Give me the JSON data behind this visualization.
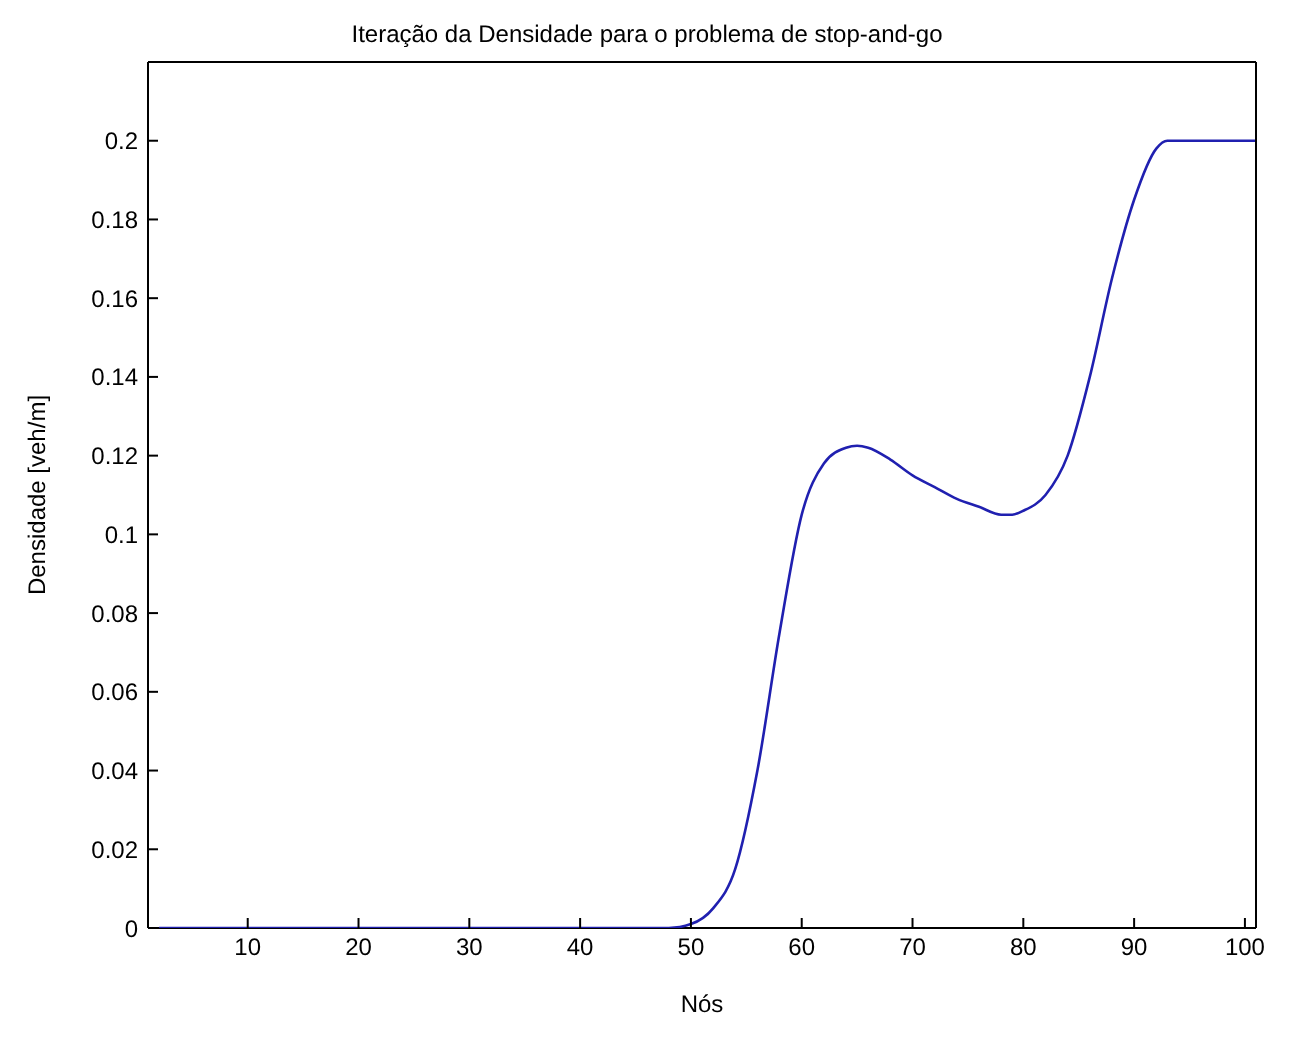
{
  "chart_data": {
    "type": "line",
    "title": "Iteração da Densidade para o problema de stop-and-go",
    "xlabel": "Nós",
    "ylabel": "Densidade [veh/m]",
    "x": [
      2,
      10,
      20,
      30,
      40,
      46,
      48,
      50,
      52,
      54,
      56,
      58,
      60,
      62,
      64,
      65,
      66,
      68,
      70,
      72,
      74,
      76,
      78,
      79,
      80,
      82,
      84,
      86,
      88,
      90,
      92,
      93,
      94,
      96,
      100,
      101
    ],
    "series": [
      {
        "color": "#2020b0",
        "values": [
          0,
          0,
          0,
          0,
          0,
          0,
          0,
          0.001,
          0.005,
          0.015,
          0.04,
          0.075,
          0.105,
          0.118,
          0.122,
          0.1225,
          0.122,
          0.119,
          0.115,
          0.112,
          0.109,
          0.107,
          0.105,
          0.105,
          0.106,
          0.11,
          0.12,
          0.14,
          0.165,
          0.185,
          0.198,
          0.2,
          0.2,
          0.2,
          0.2,
          0.2
        ]
      }
    ],
    "xlim": [
      1,
      101
    ],
    "xticks": [
      10,
      20,
      30,
      40,
      50,
      60,
      70,
      80,
      90,
      100
    ],
    "ylim": [
      0,
      0.22
    ],
    "yticks": [
      0,
      0.02,
      0.04,
      0.06,
      0.08,
      0.1,
      0.12,
      0.14,
      0.16,
      0.18,
      0.2
    ],
    "grid": false,
    "legend": false,
    "marker": "none",
    "line_style": "solid"
  }
}
